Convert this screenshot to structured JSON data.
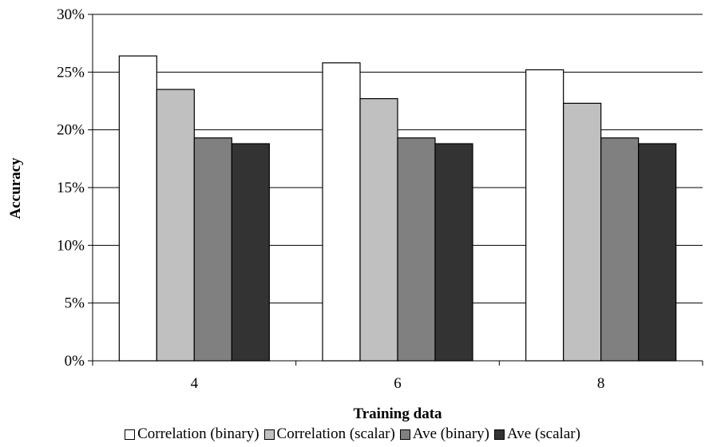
{
  "chart_data": {
    "type": "bar",
    "xlabel": "Training data",
    "ylabel": "Accuracy",
    "categories": [
      "4",
      "6",
      "8"
    ],
    "ylim": [
      0,
      0.3
    ],
    "yticks": [
      0,
      0.05,
      0.1,
      0.15,
      0.2,
      0.25,
      0.3
    ],
    "ytick_labels": [
      "0%",
      "5%",
      "10%",
      "15%",
      "20%",
      "25%",
      "30%"
    ],
    "grid": "horizontal",
    "legend_position": "bottom",
    "series": [
      {
        "name": "Correlation (binary)",
        "color": "#ffffff",
        "values": [
          0.264,
          0.258,
          0.252
        ]
      },
      {
        "name": "Correlation (scalar)",
        "color": "#c0c0c0",
        "values": [
          0.235,
          0.227,
          0.223
        ]
      },
      {
        "name": "Ave (binary)",
        "color": "#808080",
        "values": [
          0.193,
          0.193,
          0.193
        ]
      },
      {
        "name": "Ave (scalar)",
        "color": "#333333",
        "values": [
          0.188,
          0.188,
          0.188
        ]
      }
    ]
  }
}
